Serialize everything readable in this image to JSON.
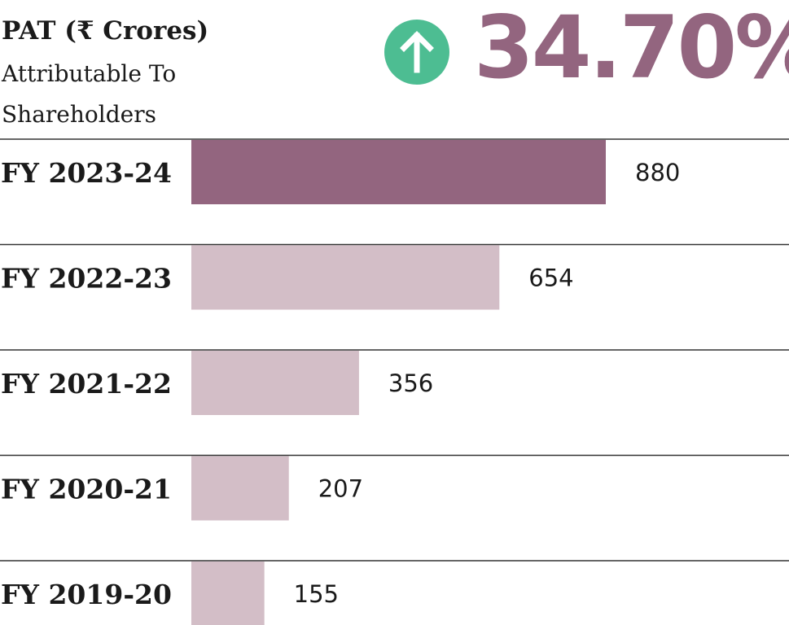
{
  "header": {
    "title": "PAT (₹ Crores)",
    "subtitle_line1": "Attributable To",
    "subtitle_line2": "Shareholders",
    "growth_value": "34.70%",
    "growth_icon": "arrow-up-circle-icon"
  },
  "colors": {
    "highlight": "#93657f",
    "muted": "#d3bec7",
    "accent_green": "#4dbd92",
    "growth_text": "#93657f",
    "divider": "#333333"
  },
  "chart_data": {
    "type": "bar",
    "orientation": "horizontal",
    "title": "PAT (₹ Crores)",
    "subtitle": "Attributable To Shareholders",
    "categories": [
      "FY 2023-24",
      "FY 2022-23",
      "FY 2021-22",
      "FY 2020-21",
      "FY 2019-20"
    ],
    "values": [
      880,
      654,
      356,
      207,
      155
    ],
    "highlighted_index": 0,
    "xlim": [
      0,
      880
    ],
    "grid": false,
    "legend": "none"
  }
}
